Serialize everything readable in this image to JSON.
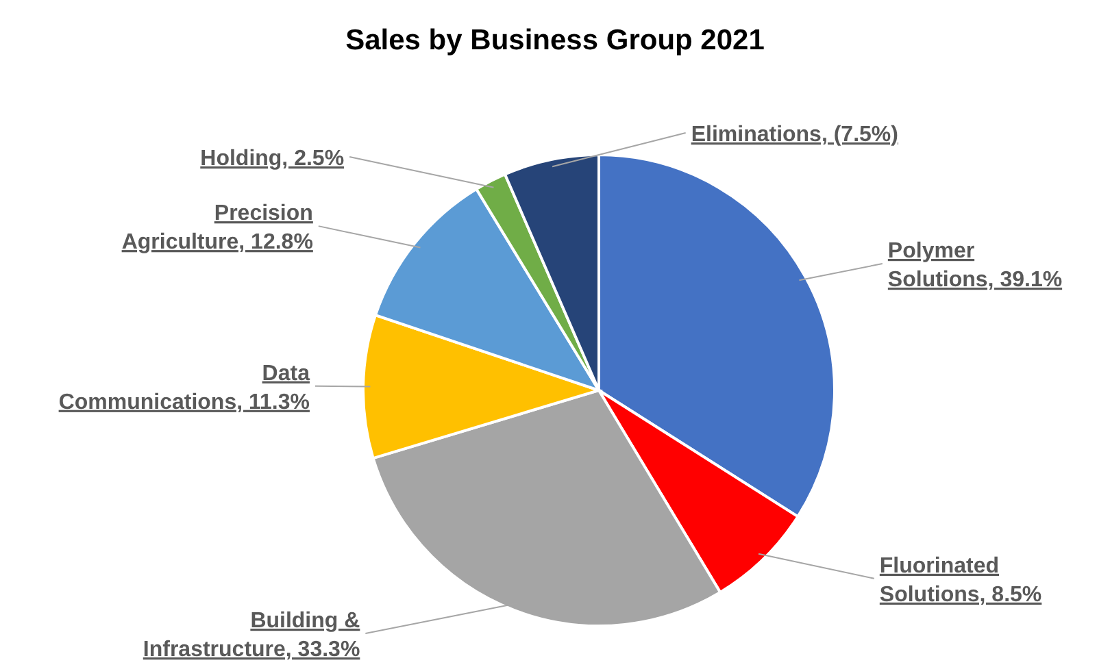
{
  "chart_data": {
    "type": "pie",
    "title": "Sales by Business Group 2021",
    "categories": [
      "Polymer Solutions",
      "Fluorinated Solutions",
      "Building & Infrastructure",
      "Data Communications",
      "Precision Agriculture",
      "Holding",
      "Eliminations"
    ],
    "values": [
      39.1,
      8.5,
      33.3,
      11.3,
      12.8,
      2.5,
      7.5
    ],
    "value_labels": [
      "39.1%",
      "8.5%",
      "33.3%",
      "11.3%",
      "12.8%",
      "2.5%",
      "(7.5%)"
    ],
    "colors": [
      "#4472c4",
      "#ff0000",
      "#a5a5a5",
      "#ffc000",
      "#5b9bd5",
      "#70ad47",
      "#264478"
    ],
    "legend": false
  }
}
